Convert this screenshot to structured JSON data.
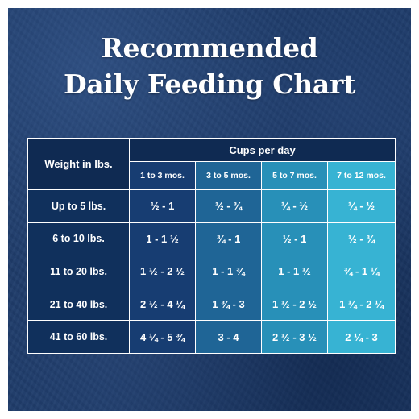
{
  "title": {
    "line1": "Recommended",
    "line2": "Daily Feeding Chart"
  },
  "table": {
    "weight_header": "Weight in lbs.",
    "cups_header": "Cups per day",
    "age_columns": [
      "1 to 3 mos.",
      "3 to 5 mos.",
      "5 to 7 mos.",
      "7 to 12 mos."
    ],
    "rows": [
      {
        "weight": "Up to 5 lbs.",
        "values": [
          "½  - 1",
          "½  - ¾",
          "¼  - ½",
          "¼  - ½"
        ]
      },
      {
        "weight": "6 to 10 lbs.",
        "values": [
          "1 - 1 ½",
          "¾ - 1",
          "½ - 1",
          "½ - ¾"
        ]
      },
      {
        "weight": "11 to 20 lbs.",
        "values": [
          "1 ½  - 2 ½",
          "1 - 1 ¾",
          "1 - 1 ½",
          "¾ - 1 ¼"
        ]
      },
      {
        "weight": "21 to 40 lbs.",
        "values": [
          "2 ½ - 4 ¼",
          "1 ¾ - 3",
          "1 ½ - 2 ½",
          "1 ¼ - 2 ¼"
        ]
      },
      {
        "weight": "41 to 60 lbs.",
        "values": [
          "4 ¼  - 5 ¾",
          "3 - 4",
          "2 ½  - 3 ½",
          "2 ¼  - 3"
        ]
      }
    ]
  },
  "colors": {
    "background": "#1d3a68",
    "header_dark": "#0f2a52",
    "col1": "#173d72",
    "col2": "#1f6596",
    "col3": "#2890b8",
    "col4": "#37b3d3"
  }
}
